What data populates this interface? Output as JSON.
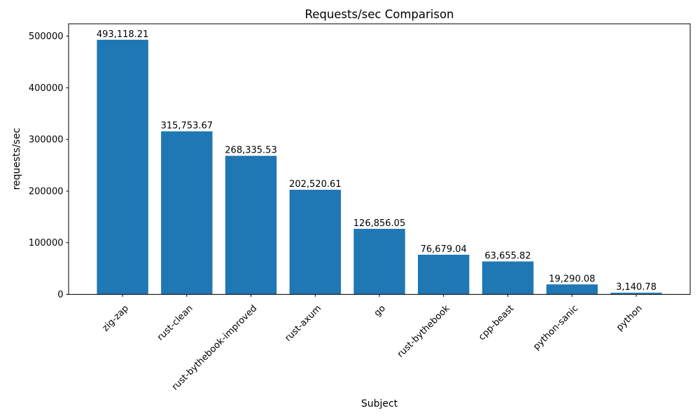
{
  "chart_data": {
    "type": "bar",
    "title": "Requests/sec Comparison",
    "xlabel": "Subject",
    "ylabel": "requests/sec",
    "categories": [
      "zig-zap",
      "rust-clean",
      "rust-bythebook-improved",
      "rust-axum",
      "go",
      "rust-bythebook",
      "cpp-beast",
      "python-sanic",
      "python"
    ],
    "values": [
      493118.21,
      315753.67,
      268335.53,
      202520.61,
      126856.05,
      76679.04,
      63655.82,
      19290.08,
      3140.78
    ],
    "value_labels": [
      "493,118.21",
      "315,753.67",
      "268,335.53",
      "202,520.61",
      "126,856.05",
      "76,679.04",
      "63,655.82",
      "19,290.08",
      "3,140.78"
    ],
    "yticks": [
      0,
      100000,
      200000,
      300000,
      400000,
      500000
    ],
    "ytick_labels": [
      "0",
      "100000",
      "200000",
      "300000",
      "400000",
      "500000"
    ],
    "ylim": [
      0,
      524000
    ],
    "bar_color": "#1f77b4",
    "spine_color": "#000000",
    "x_tick_rotation_deg": 45,
    "grid": false,
    "legend": false
  }
}
